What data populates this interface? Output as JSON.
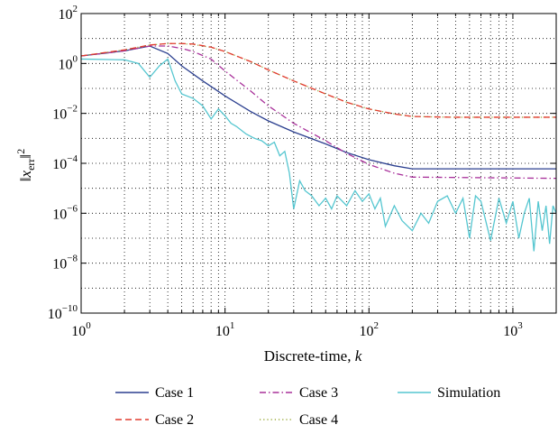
{
  "chart_data": {
    "type": "line",
    "xscale": "log",
    "yscale": "log",
    "xlim": [
      1,
      2000
    ],
    "ylim": [
      1e-10,
      100
    ],
    "xlabel": "Discrete-time, k",
    "ylabel": "||x_err||^2",
    "grid": true,
    "legend_position": "bottom",
    "x_ticks": [
      {
        "value": 1,
        "base": "10",
        "exp": "0"
      },
      {
        "value": 10,
        "base": "10",
        "exp": "1"
      },
      {
        "value": 100,
        "base": "10",
        "exp": "2"
      },
      {
        "value": 1000,
        "base": "10",
        "exp": "3"
      }
    ],
    "y_ticks": [
      {
        "value": 1e-10,
        "base": "10",
        "exp": "−10"
      },
      {
        "value": 1e-08,
        "base": "10",
        "exp": "−8"
      },
      {
        "value": 1e-06,
        "base": "10",
        "exp": "−6"
      },
      {
        "value": 0.0001,
        "base": "10",
        "exp": "−4"
      },
      {
        "value": 0.01,
        "base": "10",
        "exp": "−2"
      },
      {
        "value": 1,
        "base": "10",
        "exp": "0"
      },
      {
        "value": 100,
        "base": "10",
        "exp": "2"
      }
    ],
    "series": [
      {
        "name": "Case 1",
        "color": "#2b3f8f",
        "dash": "solid",
        "points": [
          [
            1,
            2
          ],
          [
            2,
            3.2
          ],
          [
            3,
            5
          ],
          [
            4,
            2.5
          ],
          [
            5,
            0.8
          ],
          [
            7,
            0.2
          ],
          [
            10,
            0.05
          ],
          [
            15,
            0.012
          ],
          [
            20,
            0.005
          ],
          [
            30,
            0.0018
          ],
          [
            50,
            0.0006
          ],
          [
            70,
            0.00027
          ],
          [
            100,
            0.00014
          ],
          [
            150,
            8e-05
          ],
          [
            200,
            6e-05
          ],
          [
            2000,
            6e-05
          ]
        ]
      },
      {
        "name": "Case 2",
        "color": "#e23b2e",
        "dash": "dashed",
        "points": [
          [
            1,
            2
          ],
          [
            2,
            3.5
          ],
          [
            3,
            5.5
          ],
          [
            4,
            6.3
          ],
          [
            5,
            6.3
          ],
          [
            6,
            6
          ],
          [
            8,
            4.5
          ],
          [
            10,
            3
          ],
          [
            15,
            1.2
          ],
          [
            20,
            0.55
          ],
          [
            30,
            0.2
          ],
          [
            50,
            0.06
          ],
          [
            70,
            0.028
          ],
          [
            100,
            0.015
          ],
          [
            150,
            0.0095
          ],
          [
            200,
            0.0075
          ],
          [
            400,
            0.007
          ],
          [
            2000,
            0.007
          ]
        ]
      },
      {
        "name": "Case 3",
        "color": "#a8309a",
        "dash": "dashdot",
        "points": [
          [
            1,
            2
          ],
          [
            2,
            3.2
          ],
          [
            3,
            5
          ],
          [
            4,
            5
          ],
          [
            5,
            4
          ],
          [
            6,
            3
          ],
          [
            8,
            1.5
          ],
          [
            10,
            0.5
          ],
          [
            15,
            0.08
          ],
          [
            20,
            0.02
          ],
          [
            30,
            0.004
          ],
          [
            50,
            0.0008
          ],
          [
            70,
            0.00025
          ],
          [
            100,
            9e-05
          ],
          [
            150,
            4e-05
          ],
          [
            200,
            2.8e-05
          ],
          [
            2000,
            2.5e-05
          ]
        ]
      },
      {
        "name": "Case 4",
        "color": "#9aaa3a",
        "dash": "dotted",
        "points": [
          [
            1,
            2
          ],
          [
            2,
            3.5
          ],
          [
            3,
            5.5
          ],
          [
            4,
            6.2
          ],
          [
            5,
            6.2
          ],
          [
            6,
            5.8
          ],
          [
            8,
            4.4
          ],
          [
            10,
            3
          ],
          [
            15,
            1.2
          ],
          [
            20,
            0.55
          ],
          [
            30,
            0.2
          ],
          [
            50,
            0.06
          ],
          [
            70,
            0.028
          ],
          [
            100,
            0.015
          ],
          [
            150,
            0.0095
          ],
          [
            200,
            0.0075
          ],
          [
            400,
            0.007
          ],
          [
            2000,
            0.007
          ]
        ]
      },
      {
        "name": "Simulation",
        "color": "#55c6d0",
        "dash": "solid",
        "points": [
          [
            1,
            1.5
          ],
          [
            2,
            1.4
          ],
          [
            2.5,
            1
          ],
          [
            3,
            0.28
          ],
          [
            3.5,
            0.8
          ],
          [
            4,
            1.5
          ],
          [
            4.5,
            0.2
          ],
          [
            5,
            0.06
          ],
          [
            6,
            0.04
          ],
          [
            7,
            0.02
          ],
          [
            8,
            0.006
          ],
          [
            9,
            0.015
          ],
          [
            10,
            0.008
          ],
          [
            11,
            0.004
          ],
          [
            12,
            0.003
          ],
          [
            14,
            0.0015
          ],
          [
            16,
            0.001
          ],
          [
            18,
            0.0008
          ],
          [
            20,
            0.0005
          ],
          [
            22,
            0.0007
          ],
          [
            24,
            0.0002
          ],
          [
            26,
            0.0003
          ],
          [
            28,
            4e-05
          ],
          [
            30,
            1.5e-06
          ],
          [
            33,
            2e-05
          ],
          [
            36,
            8e-06
          ],
          [
            40,
            5e-06
          ],
          [
            45,
            2e-06
          ],
          [
            50,
            4e-06
          ],
          [
            55,
            1.5e-06
          ],
          [
            60,
            5e-06
          ],
          [
            70,
            2e-06
          ],
          [
            80,
            8e-06
          ],
          [
            90,
            3e-06
          ],
          [
            100,
            6e-06
          ],
          [
            110,
            1.5e-06
          ],
          [
            120,
            4e-06
          ],
          [
            130,
            3e-07
          ],
          [
            150,
            2e-06
          ],
          [
            170,
            5e-07
          ],
          [
            200,
            2e-07
          ],
          [
            230,
            1e-06
          ],
          [
            260,
            4e-07
          ],
          [
            300,
            3e-06
          ],
          [
            350,
            5e-06
          ],
          [
            400,
            1e-06
          ],
          [
            450,
            4e-06
          ],
          [
            500,
            1e-07
          ],
          [
            550,
            5e-06
          ],
          [
            600,
            3e-06
          ],
          [
            700,
            8e-08
          ],
          [
            800,
            4e-06
          ],
          [
            900,
            4e-07
          ],
          [
            1000,
            3e-06
          ],
          [
            1100,
            1e-07
          ],
          [
            1200,
            1e-06
          ],
          [
            1300,
            4e-06
          ],
          [
            1400,
            3e-08
          ],
          [
            1500,
            3e-06
          ],
          [
            1600,
            2e-07
          ],
          [
            1700,
            2e-06
          ],
          [
            1800,
            6e-08
          ],
          [
            1900,
            2e-06
          ],
          [
            2000,
            1e-06
          ]
        ]
      }
    ]
  }
}
